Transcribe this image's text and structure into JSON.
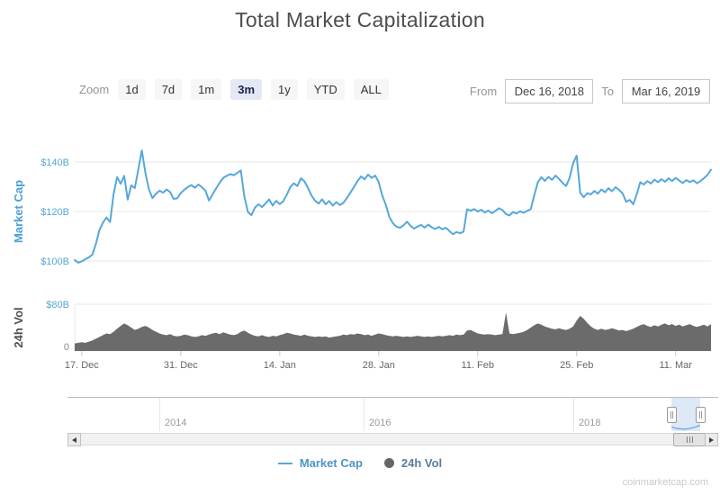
{
  "title": "Total Market Capitalization",
  "toolbar": {
    "zoom_label": "Zoom",
    "buttons": [
      "1d",
      "7d",
      "1m",
      "3m",
      "1y",
      "YTD",
      "ALL"
    ],
    "selected": "3m",
    "from_label": "From",
    "from_value": "Dec 16, 2018",
    "to_label": "To",
    "to_value": "Mar 16, 2019"
  },
  "chart_data": {
    "type": "line",
    "title": "Total Market Capitalization",
    "x_range": {
      "start": "Dec 16, 2018",
      "end": "Mar 16, 2019",
      "days": 90
    },
    "x_ticks": [
      {
        "label": "17. Dec",
        "day": 1
      },
      {
        "label": "31. Dec",
        "day": 15
      },
      {
        "label": "14. Jan",
        "day": 29
      },
      {
        "label": "28. Jan",
        "day": 43
      },
      {
        "label": "11. Feb",
        "day": 57
      },
      {
        "label": "25. Feb",
        "day": 71
      },
      {
        "label": "11. Mar",
        "day": 85
      }
    ],
    "series": [
      {
        "name": "Market Cap",
        "type": "line",
        "color": "#56a7db",
        "unit": "$B",
        "axis": {
          "title": "Market Cap",
          "ticks": [
            {
              "label": "$140B",
              "value": 140
            },
            {
              "label": "$120B",
              "value": 120
            },
            {
              "label": "$100B",
              "value": 100
            }
          ]
        },
        "values": [
          100.4,
          99.3,
          99.9,
          100.7,
          101.5,
          102.6,
          107.0,
          112.5,
          115.5,
          117.6,
          115.7,
          127.0,
          133.9,
          131.2,
          134.4,
          124.8,
          130.6,
          129.5,
          137.0,
          144.7,
          135.5,
          128.9,
          125.4,
          127.2,
          128.4,
          127.6,
          128.9,
          127.8,
          125.1,
          125.3,
          127.4,
          128.8,
          129.9,
          130.7,
          129.6,
          130.9,
          129.8,
          128.4,
          124.4,
          126.9,
          129.3,
          131.6,
          133.6,
          134.4,
          135.1,
          134.7,
          135.6,
          136.6,
          126.0,
          119.8,
          118.5,
          121.6,
          122.9,
          121.8,
          123.3,
          124.9,
          122.4,
          124.3,
          123.0,
          124.1,
          126.8,
          129.9,
          131.4,
          130.3,
          133.4,
          132.2,
          129.5,
          126.4,
          124.4,
          123.2,
          124.9,
          122.9,
          124.2,
          122.4,
          123.8,
          122.6,
          123.5,
          125.4,
          127.7,
          129.9,
          132.3,
          134.2,
          133.0,
          134.9,
          133.6,
          134.5,
          131.9,
          126.5,
          122.8,
          117.8,
          115.3,
          113.9,
          113.4,
          114.4,
          115.9,
          114.2,
          113.1,
          113.9,
          114.6,
          113.5,
          114.7,
          113.6,
          112.9,
          113.8,
          112.8,
          113.4,
          112.1,
          110.8,
          111.7,
          111.2,
          111.9,
          120.9,
          120.3,
          121.0,
          120.0,
          120.7,
          119.6,
          120.4,
          119.3,
          120.2,
          121.3,
          120.6,
          119.0,
          118.4,
          119.8,
          119.2,
          120.1,
          119.5,
          120.3,
          120.9,
          126.5,
          131.7,
          133.9,
          132.4,
          134.0,
          132.8,
          134.5,
          133.2,
          131.6,
          130.3,
          133.6,
          139.5,
          142.6,
          127.5,
          125.8,
          127.4,
          126.9,
          128.3,
          127.2,
          128.9,
          127.8,
          129.4,
          128.2,
          129.8,
          128.7,
          127.3,
          123.9,
          124.7,
          122.9,
          127.0,
          131.8,
          130.9,
          132.3,
          131.3,
          132.9,
          131.8,
          133.1,
          132.0,
          133.4,
          132.3,
          133.6,
          132.5,
          131.5,
          132.7,
          131.9,
          132.6,
          131.4,
          132.3,
          133.4,
          134.8,
          136.9
        ]
      },
      {
        "name": "24h Vol",
        "type": "area",
        "color": "#6b6b6b",
        "unit": "$B",
        "axis": {
          "title": "24h Vol",
          "ticks": [
            {
              "label": "$80B",
              "value": 80
            },
            {
              "label": "0",
              "value": 0
            }
          ]
        },
        "values": [
          13,
          14,
          15,
          14,
          16,
          18,
          21,
          24,
          27,
          30,
          29,
          33,
          38,
          43,
          47,
          44,
          40,
          36,
          38,
          41,
          43,
          40,
          36,
          33,
          30,
          28,
          27,
          29,
          26,
          25,
          26,
          28,
          27,
          25,
          24,
          25,
          27,
          26,
          28,
          30,
          31,
          29,
          32,
          30,
          28,
          27,
          29,
          33,
          35,
          31,
          28,
          26,
          25,
          27,
          25,
          24,
          26,
          25,
          27,
          29,
          31,
          30,
          28,
          27,
          26,
          28,
          26,
          25,
          24,
          25,
          24,
          25,
          23,
          24,
          25,
          26,
          28,
          27,
          29,
          28,
          30,
          29,
          27,
          28,
          26,
          28,
          30,
          29,
          27,
          26,
          25,
          26,
          25,
          24,
          25,
          24,
          25,
          26,
          25,
          24,
          25,
          24,
          25,
          26,
          25,
          26,
          27,
          26,
          28,
          27,
          28,
          35,
          36,
          33,
          30,
          29,
          28,
          29,
          28,
          27,
          28,
          29,
          66,
          30,
          29,
          30,
          31,
          33,
          36,
          40,
          44,
          47,
          45,
          42,
          40,
          38,
          37,
          39,
          37,
          36,
          38,
          42,
          52,
          60,
          55,
          48,
          42,
          38,
          36,
          38,
          36,
          37,
          39,
          37,
          35,
          36,
          34,
          36,
          38,
          41,
          44,
          46,
          43,
          41,
          44,
          42,
          45,
          47,
          44,
          46,
          43,
          45,
          42,
          44,
          46,
          43,
          41,
          43,
          45,
          42,
          46
        ]
      }
    ],
    "navigator": {
      "year_labels": [
        "2014",
        "2016",
        "2018"
      ],
      "selection_series": [
        3.5,
        1.8,
        1.2,
        1.6,
        3.2,
        5.5
      ]
    }
  },
  "legend": {
    "items": [
      {
        "label": "Market Cap",
        "marker": "line",
        "marker_color": "#56a7db",
        "text_color": "#4e94c4"
      },
      {
        "label": "24h Vol",
        "marker": "circle",
        "marker_color": "#666666",
        "text_color": "#5c7d99"
      }
    ]
  },
  "watermark": "coinmarketcap.com"
}
